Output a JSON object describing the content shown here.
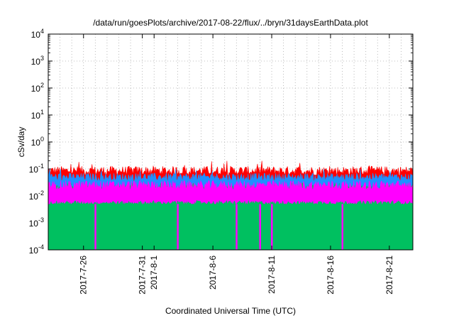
{
  "chart_data": {
    "type": "area",
    "title": "/data/run/goesPlots/archive/2017-08-22/flux/../bryn/31daysEarthData.plot",
    "xlabel": "Coordinated Universal Time (UTC)",
    "ylabel": "cSv/day",
    "y_scale": "log",
    "ylim": [
      0.0001,
      10000
    ],
    "y_ticks": [
      {
        "value": 0.0001,
        "base": "10",
        "exp": "-4"
      },
      {
        "value": 0.001,
        "base": "10",
        "exp": "-3"
      },
      {
        "value": 0.01,
        "base": "10",
        "exp": "-2"
      },
      {
        "value": 0.1,
        "base": "10",
        "exp": "-1"
      },
      {
        "value": 1,
        "base": "10",
        "exp": "0"
      },
      {
        "value": 10,
        "base": "10",
        "exp": "1"
      },
      {
        "value": 100,
        "base": "10",
        "exp": "2"
      },
      {
        "value": 1000,
        "base": "10",
        "exp": "3"
      },
      {
        "value": 10000,
        "base": "10",
        "exp": "4"
      }
    ],
    "xlim": [
      "2017-07-23",
      "2017-08-23"
    ],
    "x_ticks": [
      "2017-7-26",
      "2017-7-31",
      "2017-8-1",
      "2017-8-6",
      "2017-8-11",
      "2017-8-16",
      "2017-8-21"
    ],
    "grid": true,
    "series": [
      {
        "color": "#ff0000",
        "level_typical": 0.085,
        "level_max": 0.2
      },
      {
        "color": "#1e90ff",
        "level_typical": 0.05,
        "level_max": 0.1
      },
      {
        "color": "#00c060",
        "level_typical": 0.02,
        "level_max": 0.03
      },
      {
        "color": "#ff00ff",
        "level_typical": 0.025,
        "level_min": 0.005,
        "dropouts": [
          "2017-07-27",
          "2017-08-03",
          "2017-08-08",
          "2017-08-10",
          "2017-08-11",
          "2017-08-17"
        ]
      }
    ]
  }
}
